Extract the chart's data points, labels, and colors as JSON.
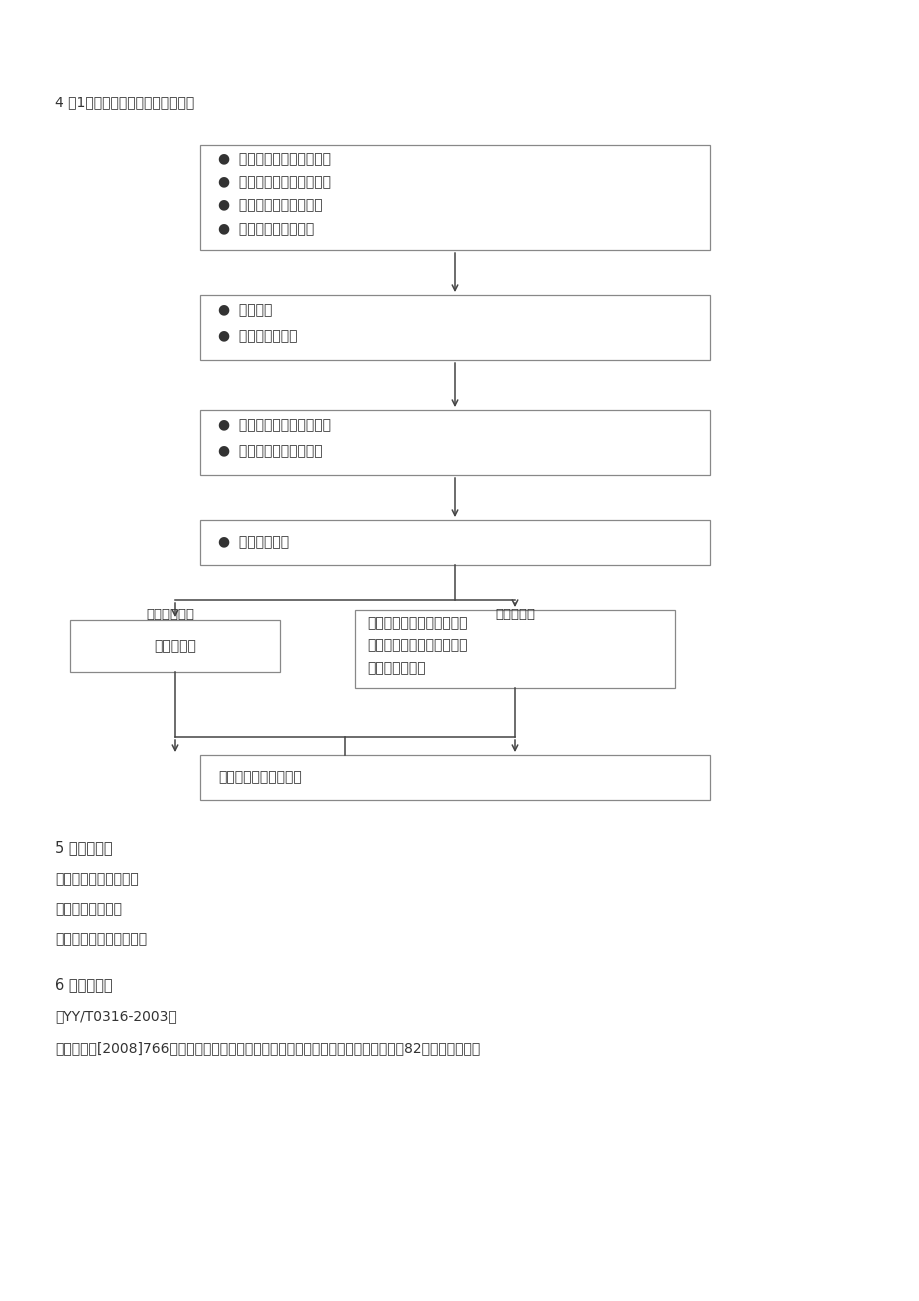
{
  "bg_color": "#ffffff",
  "text_color": "#333333",
  "box_border_color": "#888888",
  "page_title": "4 ．1产品召回管理工作程序示意图",
  "box1_lines": [
    "●  产品运用平安信息收集；",
    "●  产品技术平安信息收集；",
    "●  产品缺陷调查、评估。",
    "●  召回事务报告（表）"
  ],
  "box2_lines": [
    "●  召回安排",
    "●  召回通知与实施"
  ],
  "box3_lines": [
    "●  召回产品风险分析、评估",
    "●  召回产品处理措施制定"
  ],
  "box4_lines": [
    "●  召回产品处理"
  ],
  "box_left_lines": [
    "回收、销毁"
  ],
  "box_right_lines": [
    "警示、检查、修理、重新标",
    "签、修改并完善说明书、软",
    "件升级、替换等"
  ],
  "box_final_lines": [
    "召回安排实施状况报告"
  ],
  "label_left": "缺陷不行改进",
  "label_right": "缺陷可改进",
  "section5_title": "5 ．相关文件",
  "section5_items": [
    "《风险管理限制程序》",
    "《服务限制程序》",
    "《忠告性通知限制程序》"
  ],
  "section6_title": "6 ．引用文件",
  "section6_item1": "《YY/T0316-2003》",
  "section6_item2": "国食药监械[2008]766号《医疗器械不良事务监测和再评价管理方法（试行）》卫生部82号令《医疗器械"
}
